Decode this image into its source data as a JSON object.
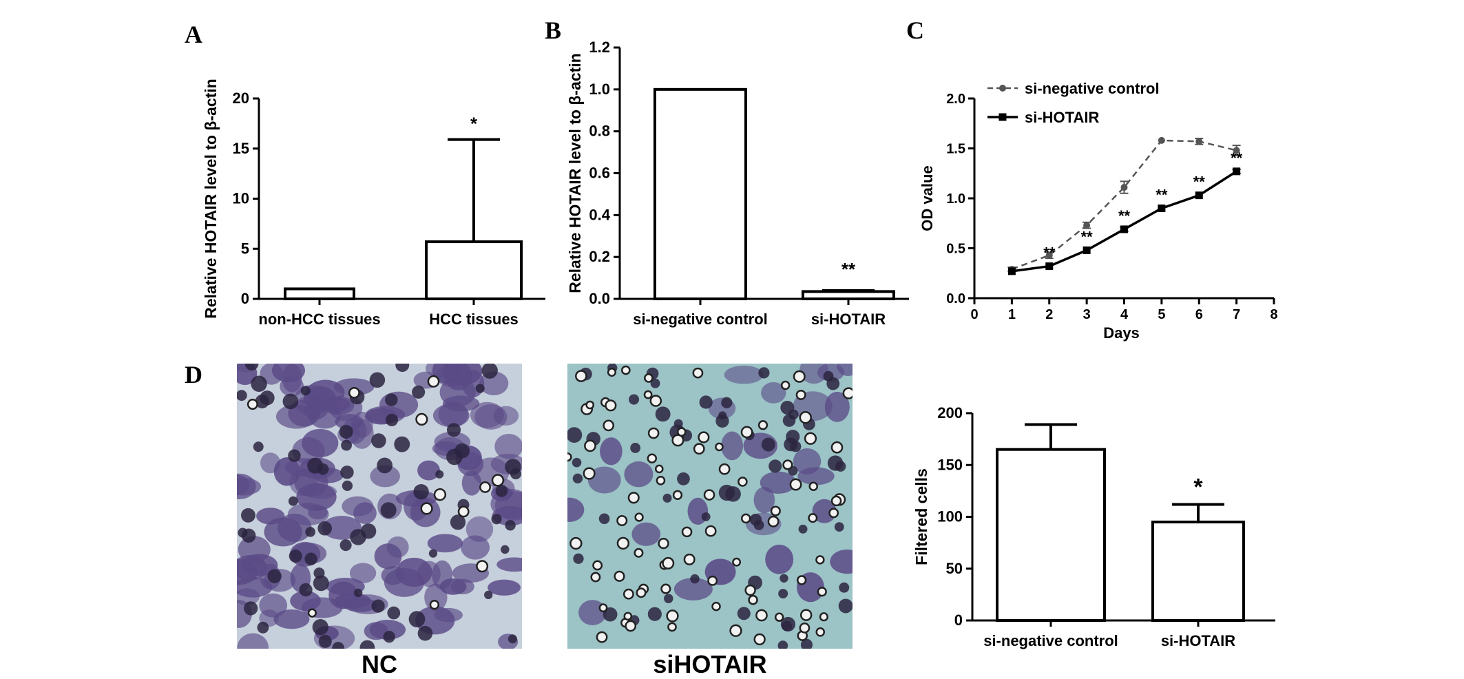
{
  "panel_letters": {
    "A": "A",
    "B": "B",
    "C": "C",
    "D": "D"
  },
  "images": {
    "nc_caption": "NC",
    "si_caption": "siHOTAIR",
    "nc_color": "#c6cfdc",
    "si_color": "#9cc3c6",
    "cell_purple": "#5a4a86",
    "cell_dark": "#2c2440"
  },
  "chart_data": [
    {
      "id": "A",
      "type": "bar",
      "ylabel": "Relative HOTAIR level to β-actin",
      "xlabel": "",
      "ylim": [
        0,
        20
      ],
      "yticks": [
        0,
        5,
        10,
        15,
        20
      ],
      "categories": [
        "non-HCC tissues",
        "HCC tissues"
      ],
      "values": [
        1,
        5.7
      ],
      "error_upper": [
        1,
        15.9
      ],
      "annotations": [
        "",
        "*"
      ]
    },
    {
      "id": "B",
      "type": "bar",
      "ylabel": "Relative HOTAIR level to β-actin",
      "xlabel": "",
      "ylim": [
        0,
        1.2
      ],
      "yticks": [
        "0.0",
        "0.2",
        "0.4",
        "0.6",
        "0.8",
        "1.0",
        "1.2"
      ],
      "categories": [
        "si-negative control",
        "si-HOTAIR"
      ],
      "values": [
        1.0,
        0.035
      ],
      "error_upper": [
        1.0,
        0.04
      ],
      "annotations": [
        "",
        "**"
      ]
    },
    {
      "id": "C",
      "type": "line",
      "ylabel": "OD value",
      "xlabel": "Days",
      "xlim": [
        0,
        8
      ],
      "ylim": [
        0,
        2.0
      ],
      "xticks": [
        "0",
        "1",
        "2",
        "3",
        "4",
        "5",
        "6",
        "7",
        "8"
      ],
      "yticks": [
        "0.0",
        "0.5",
        "1.0",
        "1.5",
        "2.0"
      ],
      "legend_position": "top-left",
      "series": [
        {
          "name": "si-negative control",
          "style": "dashed",
          "x": [
            1,
            2,
            3,
            4,
            5,
            6,
            7
          ],
          "y": [
            0.29,
            0.43,
            0.73,
            1.11,
            1.58,
            1.57,
            1.48
          ],
          "err": [
            0.02,
            0.03,
            0.03,
            0.06,
            0.01,
            0.03,
            0.05
          ]
        },
        {
          "name": "si-HOTAIR",
          "style": "solid",
          "x": [
            1,
            2,
            3,
            4,
            5,
            6,
            7
          ],
          "y": [
            0.27,
            0.32,
            0.48,
            0.69,
            0.9,
            1.03,
            1.27
          ],
          "err": [
            0.01,
            0.01,
            0.01,
            0.02,
            0.01,
            0.01,
            0.02
          ]
        }
      ],
      "annotations": [
        {
          "x": 2,
          "text": "**"
        },
        {
          "x": 3,
          "text": "**"
        },
        {
          "x": 4,
          "text": "**"
        },
        {
          "x": 5,
          "text": "**"
        },
        {
          "x": 6,
          "text": "**"
        },
        {
          "x": 7,
          "text": "**"
        }
      ]
    },
    {
      "id": "D",
      "type": "bar",
      "ylabel": "Filtered cells",
      "xlabel": "",
      "ylim": [
        0,
        200
      ],
      "yticks": [
        0,
        50,
        100,
        150,
        200
      ],
      "categories": [
        "si-negative control",
        "si-HOTAIR"
      ],
      "values": [
        165,
        95
      ],
      "error_upper": [
        189,
        112
      ],
      "annotations": [
        "",
        "*"
      ]
    }
  ]
}
